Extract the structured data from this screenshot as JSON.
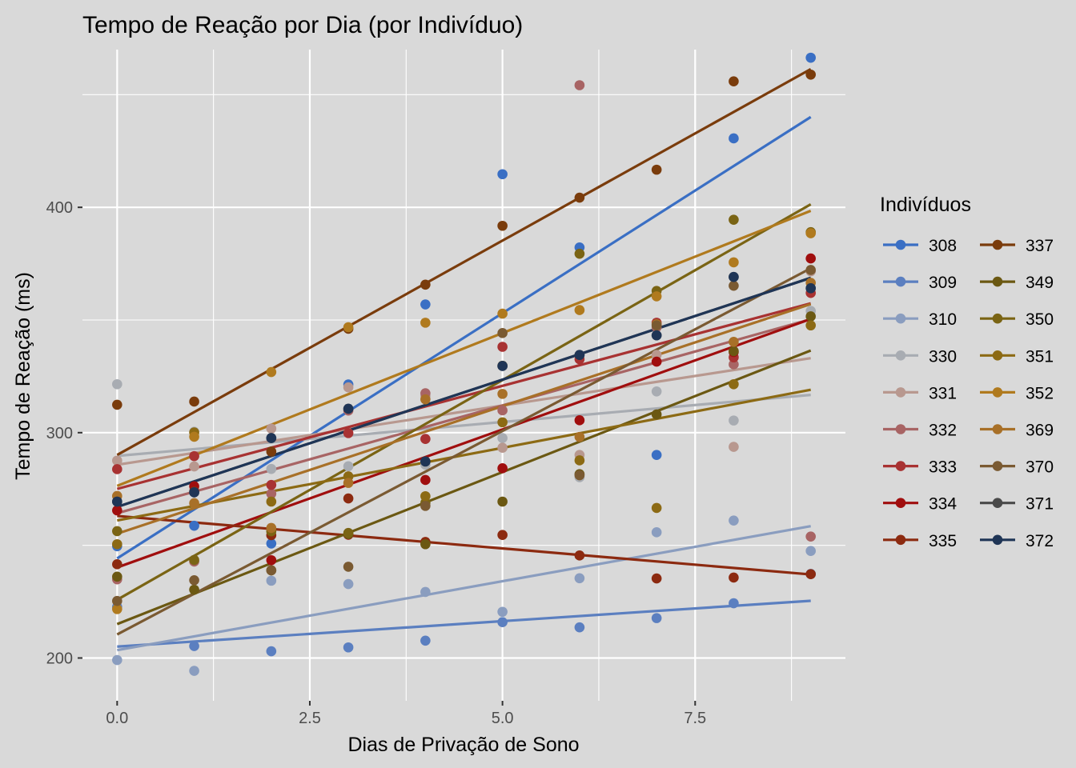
{
  "chart_data": {
    "type": "scatter",
    "title": "Tempo de Reação por Dia (por Indivíduo)",
    "xlabel": "Dias de Privação de Sono",
    "ylabel": "Tempo de Reação (ms)",
    "xlim": [
      -0.45,
      9.45
    ],
    "ylim": [
      181,
      470
    ],
    "xticks": [
      0,
      2.5,
      5,
      7.5
    ],
    "xtick_labels": [
      "0.0",
      "2.5",
      "5.0",
      "7.5"
    ],
    "yticks": [
      200,
      300,
      400
    ],
    "ytick_labels": [
      "200",
      "300",
      "400"
    ],
    "grid": true,
    "legend": {
      "title": "Indivíduos",
      "position": "right",
      "columns": 2
    },
    "overlay": "linear regression line per series",
    "x": [
      0,
      1,
      2,
      3,
      4,
      5,
      6,
      7,
      8,
      9
    ],
    "series": [
      {
        "name": "308",
        "color": "#3a6fc4",
        "values": [
          249.6,
          258.7,
          250.8,
          321.4,
          356.9,
          414.7,
          382.2,
          290.1,
          430.6,
          466.4
        ]
      },
      {
        "name": "309",
        "color": "#5b7fc0",
        "values": [
          222.7,
          205.3,
          203.0,
          204.7,
          207.7,
          215.9,
          213.6,
          217.7,
          224.3,
          237.3
        ]
      },
      {
        "name": "310",
        "color": "#8a9dbf",
        "values": [
          199.1,
          194.3,
          234.3,
          232.8,
          229.3,
          220.5,
          235.4,
          255.8,
          261.0,
          247.5
        ]
      },
      {
        "name": "330",
        "color": "#a8acb2",
        "values": [
          321.5,
          300.4,
          283.9,
          285.1,
          285.8,
          297.6,
          280.2,
          318.3,
          305.4,
          354.0
        ]
      },
      {
        "name": "331",
        "color": "#b8988f",
        "values": [
          287.6,
          285.0,
          301.8,
          320.1,
          316.3,
          293.3,
          290.1,
          334.5,
          293.7,
          371.6
        ]
      },
      {
        "name": "332",
        "color": "#a86464",
        "values": [
          234.9,
          242.8,
          272.9,
          309.8,
          317.5,
          309.9,
          454.2,
          346.8,
          330.3,
          253.9
        ]
      },
      {
        "name": "333",
        "color": "#a83232",
        "values": [
          283.8,
          289.6,
          276.8,
          299.8,
          297.2,
          338.1,
          332.6,
          348.8,
          333.4,
          362.0
        ]
      },
      {
        "name": "334",
        "color": "#a00e0e",
        "values": [
          265.5,
          276.2,
          243.4,
          254.7,
          279.0,
          284.2,
          305.5,
          331.5,
          335.8,
          377.3
        ]
      },
      {
        "name": "335",
        "color": "#8c2a10",
        "values": [
          241.6,
          273.9,
          254.5,
          270.8,
          251.5,
          254.6,
          245.5,
          235.3,
          235.7,
          237.2
        ]
      },
      {
        "name": "337",
        "color": "#7a3c0c",
        "values": [
          312.4,
          313.8,
          291.6,
          346.1,
          365.7,
          391.8,
          404.3,
          416.7,
          455.9,
          458.9
        ]
      },
      {
        "name": "349",
        "color": "#6b5812",
        "values": [
          236.1,
          230.3,
          238.9,
          254.9,
          250.5,
          269.4,
          281.6,
          308.1,
          336.2,
          351.6
        ]
      },
      {
        "name": "350",
        "color": "#7a6414",
        "values": [
          256.3,
          243.5,
          256.2,
          255.5,
          268.9,
          329.7,
          379.4,
          362.9,
          394.5,
          389.0
        ]
      },
      {
        "name": "351",
        "color": "#8c6a14",
        "values": [
          250.5,
          300.1,
          269.4,
          280.6,
          271.8,
          304.6,
          287.7,
          266.6,
          321.5,
          347.6
        ]
      },
      {
        "name": "352",
        "color": "#b07a1e",
        "values": [
          221.7,
          298.2,
          326.9,
          346.8,
          348.8,
          352.8,
          354.4,
          360.5,
          375.6,
          388.5
        ]
      },
      {
        "name": "369",
        "color": "#a87028",
        "values": [
          271.9,
          268.7,
          257.7,
          277.7,
          314.8,
          317.2,
          298.1,
          348.1,
          340.3,
          366.5
        ]
      },
      {
        "name": "370",
        "color": "#7a5a32",
        "values": [
          225.3,
          234.5,
          238.9,
          240.5,
          267.5,
          344.2,
          281.1,
          347.6,
          365.2,
          372.2
        ]
      },
      {
        "name": "371",
        "color": "#4a4a4a",
        "values": [
          269.4,
          273.5,
          297.6,
          310.6,
          287.2,
          329.6,
          334.5,
          343.2,
          369.1,
          364.1
        ]
      },
      {
        "name": "372",
        "color": "#1f3556",
        "values": [
          269.4,
          273.5,
          297.6,
          310.6,
          287.2,
          329.6,
          334.5,
          343.2,
          369.1,
          364.1
        ]
      }
    ]
  }
}
